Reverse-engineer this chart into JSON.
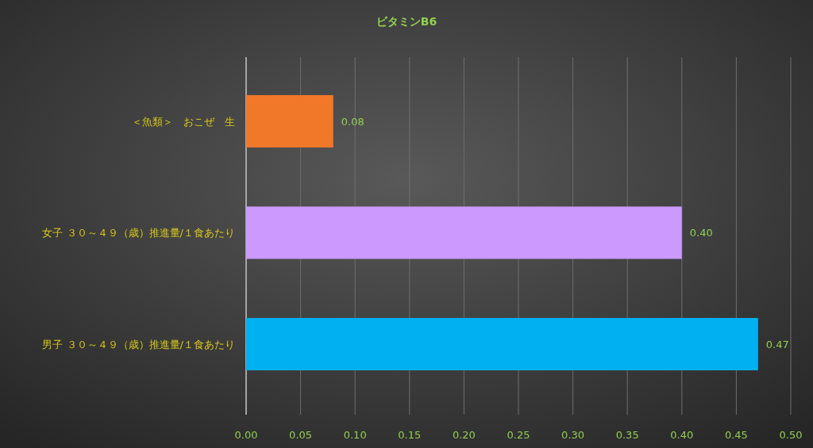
{
  "chart_data": {
    "type": "bar",
    "orientation": "horizontal",
    "title": "ビタミンB6",
    "categories": [
      "＜魚類＞　おこぜ　生",
      "女子 ３０～４９（歳）推進量/１食あたり",
      "男子 ３０～４９（歳）推進量/１食あたり"
    ],
    "values": [
      0.08,
      0.4,
      0.47
    ],
    "colors": [
      "#f07828",
      "#cc99ff",
      "#00b0f0"
    ],
    "xlim": [
      0,
      0.5
    ],
    "xticks": [
      {
        "value": 0,
        "label": "0.00"
      },
      {
        "value": 0.05,
        "label": "0.05"
      },
      {
        "value": 0.1,
        "label": "0.10"
      },
      {
        "value": 0.15,
        "label": "0.15"
      },
      {
        "value": 0.2,
        "label": "0.20"
      },
      {
        "value": 0.25,
        "label": "0.25"
      },
      {
        "value": 0.3,
        "label": "0.30"
      },
      {
        "value": 0.35,
        "label": "0.35"
      },
      {
        "value": 0.4,
        "label": "0.40"
      },
      {
        "value": 0.45,
        "label": "0.45"
      },
      {
        "value": 0.5,
        "label": "0.50"
      }
    ],
    "value_labels": [
      "0.08",
      "0.40",
      "0.47"
    ],
    "grid": "x"
  }
}
